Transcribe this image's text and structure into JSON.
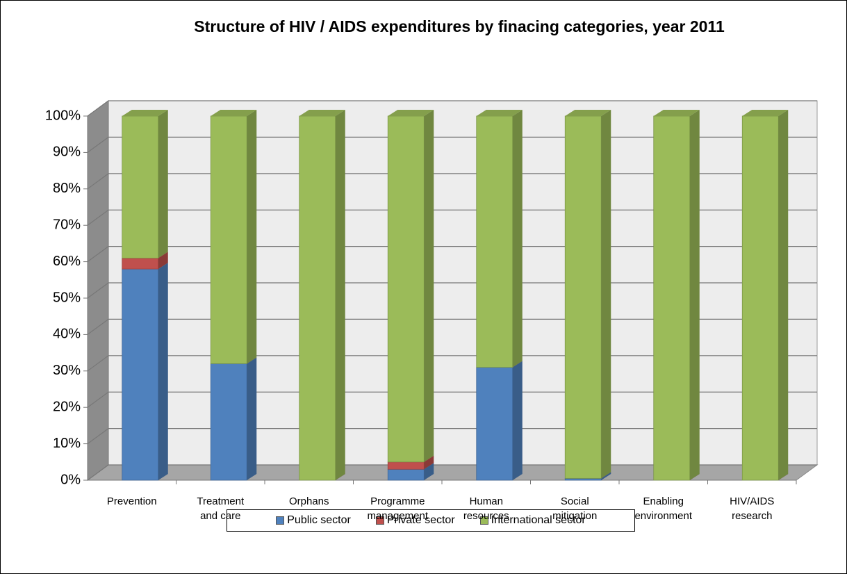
{
  "chart_data": {
    "type": "stacked_bar_3d",
    "title": "Structure of HIV / AIDS expenditures by finacing categories, year 2011",
    "categories": [
      "Prevention",
      "Treatment and care",
      "Orphans",
      "Programme management",
      "Human resources",
      "Social mitigation",
      "Enabling environment",
      "HIV/AIDS research"
    ],
    "series": [
      {
        "name": "Public sector",
        "color": "#4f81bd",
        "values": [
          58,
          32,
          0,
          3,
          31,
          0.5,
          0,
          0
        ]
      },
      {
        "name": "Private sector",
        "color": "#c0504d",
        "values": [
          3,
          0,
          0,
          2,
          0,
          0,
          0,
          0
        ]
      },
      {
        "name": "International sector",
        "color": "#9bbb59",
        "values": [
          39,
          68,
          100,
          95,
          69,
          99.5,
          100,
          100
        ]
      }
    ],
    "ylim": [
      0,
      100
    ],
    "yticks": [
      {
        "value": 0,
        "label": "0%"
      },
      {
        "value": 10,
        "label": "10%"
      },
      {
        "value": 20,
        "label": "20%"
      },
      {
        "value": 30,
        "label": "30%"
      },
      {
        "value": 40,
        "label": "40%"
      },
      {
        "value": 50,
        "label": "50%"
      },
      {
        "value": 60,
        "label": "60%"
      },
      {
        "value": 70,
        "label": "70%"
      },
      {
        "value": 80,
        "label": "80%"
      },
      {
        "value": 90,
        "label": "90%"
      },
      {
        "value": 100,
        "label": "100%"
      }
    ],
    "grid": true,
    "legend": "bottom"
  }
}
